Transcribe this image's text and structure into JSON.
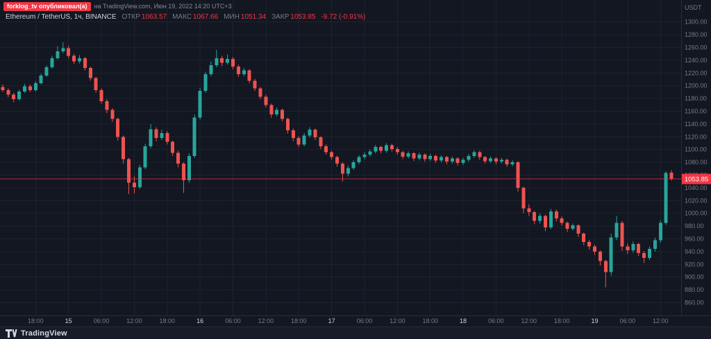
{
  "attribution": {
    "author_badge": "forklog_tv опубликовал(а)",
    "suffix": "на TradingView.com, Июн 19, 2022 14:20 UTC+3"
  },
  "legend": {
    "symbol": "Ethereum / TetherUS, 1ч, BINANCE",
    "fields": [
      {
        "label": "ОТКР",
        "value": "1063.57"
      },
      {
        "label": "МАКС",
        "value": "1067.66"
      },
      {
        "label": "МИН",
        "value": "1051.34"
      },
      {
        "label": "ЗАКР",
        "value": "1053.85"
      }
    ],
    "change": "-9.72 (-0.91%)"
  },
  "price_axis": {
    "unit": "USDT",
    "min": 860,
    "max": 1300,
    "step": 20
  },
  "time_axis": {
    "labels": [
      {
        "i": 6,
        "t": "18:00",
        "d": false
      },
      {
        "i": 12,
        "t": "15",
        "d": true
      },
      {
        "i": 18,
        "t": "06:00",
        "d": false
      },
      {
        "i": 24,
        "t": "12:00",
        "d": false
      },
      {
        "i": 30,
        "t": "18:00",
        "d": false
      },
      {
        "i": 36,
        "t": "16",
        "d": true
      },
      {
        "i": 42,
        "t": "06:00",
        "d": false
      },
      {
        "i": 48,
        "t": "12:00",
        "d": false
      },
      {
        "i": 54,
        "t": "18:00",
        "d": false
      },
      {
        "i": 60,
        "t": "17",
        "d": true
      },
      {
        "i": 66,
        "t": "06:00",
        "d": false
      },
      {
        "i": 72,
        "t": "12:00",
        "d": false
      },
      {
        "i": 78,
        "t": "18:00",
        "d": false
      },
      {
        "i": 84,
        "t": "18",
        "d": true
      },
      {
        "i": 90,
        "t": "06:00",
        "d": false
      },
      {
        "i": 96,
        "t": "12:00",
        "d": false
      },
      {
        "i": 102,
        "t": "18:00",
        "d": false
      },
      {
        "i": 108,
        "t": "19",
        "d": true
      },
      {
        "i": 114,
        "t": "06:00",
        "d": false
      },
      {
        "i": 120,
        "t": "12:00",
        "d": false
      }
    ]
  },
  "footer": {
    "brand": "TradingView"
  },
  "colors": {
    "background": "#131722",
    "up": "#26a69a",
    "down": "#ef5350",
    "grid": "#1e222d",
    "border": "#2a2e39",
    "axis_text": "#787b86",
    "day_text": "#d1d4dc",
    "accent_red": "#f23645",
    "badge_text": "#ffffff"
  },
  "chart_data": {
    "type": "candlestick",
    "title": "Ethereum / TetherUS, 1ч, BINANCE",
    "interval": "1h",
    "unit": "USDT",
    "price_range": [
      860,
      1300
    ],
    "last_price": 1053.85,
    "last_price_text": "1053.85",
    "candles": [
      [
        1198,
        1202,
        1190,
        1193
      ],
      [
        1193,
        1196,
        1182,
        1186
      ],
      [
        1186,
        1189,
        1174,
        1179
      ],
      [
        1179,
        1194,
        1177,
        1191
      ],
      [
        1191,
        1203,
        1189,
        1199
      ],
      [
        1199,
        1202,
        1190,
        1193
      ],
      [
        1193,
        1207,
        1191,
        1204
      ],
      [
        1204,
        1219,
        1202,
        1216
      ],
      [
        1216,
        1232,
        1214,
        1229
      ],
      [
        1229,
        1247,
        1227,
        1243
      ],
      [
        1243,
        1262,
        1241,
        1254
      ],
      [
        1254,
        1268,
        1251,
        1259
      ],
      [
        1259,
        1263,
        1243,
        1247
      ],
      [
        1247,
        1250,
        1234,
        1238
      ],
      [
        1238,
        1248,
        1235,
        1243
      ],
      [
        1243,
        1245,
        1224,
        1228
      ],
      [
        1228,
        1230,
        1208,
        1212
      ],
      [
        1212,
        1214,
        1189,
        1193
      ],
      [
        1193,
        1196,
        1172,
        1176
      ],
      [
        1176,
        1179,
        1157,
        1162
      ],
      [
        1162,
        1165,
        1143,
        1148
      ],
      [
        1148,
        1150,
        1114,
        1120
      ],
      [
        1120,
        1122,
        1078,
        1085
      ],
      [
        1085,
        1087,
        1030,
        1048
      ],
      [
        1048,
        1058,
        1031,
        1041
      ],
      [
        1041,
        1076,
        1038,
        1072
      ],
      [
        1072,
        1109,
        1069,
        1105
      ],
      [
        1105,
        1140,
        1102,
        1132
      ],
      [
        1132,
        1135,
        1113,
        1118
      ],
      [
        1118,
        1131,
        1115,
        1126
      ],
      [
        1126,
        1129,
        1108,
        1112
      ],
      [
        1112,
        1114,
        1090,
        1095
      ],
      [
        1095,
        1098,
        1072,
        1078
      ],
      [
        1078,
        1080,
        1032,
        1052
      ],
      [
        1052,
        1094,
        1048,
        1090
      ],
      [
        1090,
        1155,
        1087,
        1150
      ],
      [
        1150,
        1197,
        1147,
        1192
      ],
      [
        1192,
        1222,
        1189,
        1218
      ],
      [
        1218,
        1238,
        1215,
        1232
      ],
      [
        1232,
        1256,
        1229,
        1243
      ],
      [
        1243,
        1247,
        1231,
        1236
      ],
      [
        1236,
        1249,
        1233,
        1242
      ],
      [
        1242,
        1245,
        1226,
        1230
      ],
      [
        1230,
        1233,
        1214,
        1218
      ],
      [
        1218,
        1228,
        1215,
        1224
      ],
      [
        1224,
        1226,
        1204,
        1208
      ],
      [
        1208,
        1211,
        1192,
        1196
      ],
      [
        1196,
        1198,
        1179,
        1183
      ],
      [
        1183,
        1186,
        1166,
        1170
      ],
      [
        1170,
        1172,
        1150,
        1155
      ],
      [
        1155,
        1166,
        1152,
        1162
      ],
      [
        1162,
        1164,
        1144,
        1148
      ],
      [
        1148,
        1150,
        1125,
        1130
      ],
      [
        1130,
        1133,
        1113,
        1118
      ],
      [
        1118,
        1121,
        1104,
        1108
      ],
      [
        1108,
        1126,
        1105,
        1122
      ],
      [
        1122,
        1135,
        1119,
        1131
      ],
      [
        1131,
        1133,
        1115,
        1119
      ],
      [
        1119,
        1121,
        1101,
        1105
      ],
      [
        1105,
        1108,
        1092,
        1096
      ],
      [
        1096,
        1098,
        1084,
        1088
      ],
      [
        1088,
        1090,
        1073,
        1078
      ],
      [
        1078,
        1080,
        1050,
        1062
      ],
      [
        1062,
        1075,
        1058,
        1071
      ],
      [
        1071,
        1083,
        1068,
        1080
      ],
      [
        1080,
        1091,
        1077,
        1088
      ],
      [
        1088,
        1096,
        1085,
        1092
      ],
      [
        1092,
        1100,
        1089,
        1097
      ],
      [
        1097,
        1107,
        1094,
        1104
      ],
      [
        1104,
        1106,
        1094,
        1098
      ],
      [
        1098,
        1110,
        1095,
        1107
      ],
      [
        1107,
        1109,
        1097,
        1101
      ],
      [
        1101,
        1104,
        1092,
        1096
      ],
      [
        1096,
        1098,
        1085,
        1089
      ],
      [
        1089,
        1097,
        1086,
        1094
      ],
      [
        1094,
        1096,
        1082,
        1086
      ],
      [
        1086,
        1095,
        1083,
        1092
      ],
      [
        1092,
        1094,
        1081,
        1085
      ],
      [
        1085,
        1093,
        1082,
        1090
      ],
      [
        1090,
        1092,
        1079,
        1083
      ],
      [
        1083,
        1091,
        1080,
        1088
      ],
      [
        1088,
        1090,
        1077,
        1081
      ],
      [
        1081,
        1089,
        1078,
        1086
      ],
      [
        1086,
        1088,
        1075,
        1079
      ],
      [
        1079,
        1087,
        1076,
        1084
      ],
      [
        1084,
        1093,
        1081,
        1090
      ],
      [
        1090,
        1099,
        1087,
        1096
      ],
      [
        1096,
        1098,
        1084,
        1088
      ],
      [
        1088,
        1090,
        1078,
        1082
      ],
      [
        1082,
        1089,
        1079,
        1086
      ],
      [
        1086,
        1088,
        1077,
        1081
      ],
      [
        1081,
        1087,
        1078,
        1084
      ],
      [
        1084,
        1086,
        1073,
        1077
      ],
      [
        1077,
        1083,
        1074,
        1080
      ],
      [
        1080,
        1082,
        1034,
        1040
      ],
      [
        1040,
        1042,
        1000,
        1008
      ],
      [
        1008,
        1014,
        996,
        1002
      ],
      [
        1002,
        1004,
        983,
        988
      ],
      [
        988,
        1000,
        984,
        996
      ],
      [
        996,
        998,
        972,
        978
      ],
      [
        978,
        1007,
        975,
        1003
      ],
      [
        1003,
        1006,
        987,
        992
      ],
      [
        992,
        995,
        981,
        985
      ],
      [
        985,
        987,
        971,
        976
      ],
      [
        976,
        984,
        973,
        981
      ],
      [
        981,
        983,
        963,
        968
      ],
      [
        968,
        970,
        950,
        955
      ],
      [
        955,
        958,
        943,
        948
      ],
      [
        948,
        951,
        935,
        940
      ],
      [
        940,
        942,
        918,
        925
      ],
      [
        925,
        927,
        884,
        908
      ],
      [
        908,
        968,
        902,
        962
      ],
      [
        962,
        996,
        958,
        985
      ],
      [
        985,
        988,
        941,
        948
      ],
      [
        948,
        953,
        936,
        942
      ],
      [
        942,
        956,
        938,
        952
      ],
      [
        952,
        954,
        933,
        938
      ],
      [
        938,
        941,
        922,
        930
      ],
      [
        930,
        948,
        927,
        944
      ],
      [
        944,
        962,
        940,
        958
      ],
      [
        958,
        989,
        954,
        985
      ],
      [
        985,
        1066,
        982,
        1063
      ],
      [
        1063.57,
        1067.66,
        1051.34,
        1053.85
      ]
    ]
  }
}
